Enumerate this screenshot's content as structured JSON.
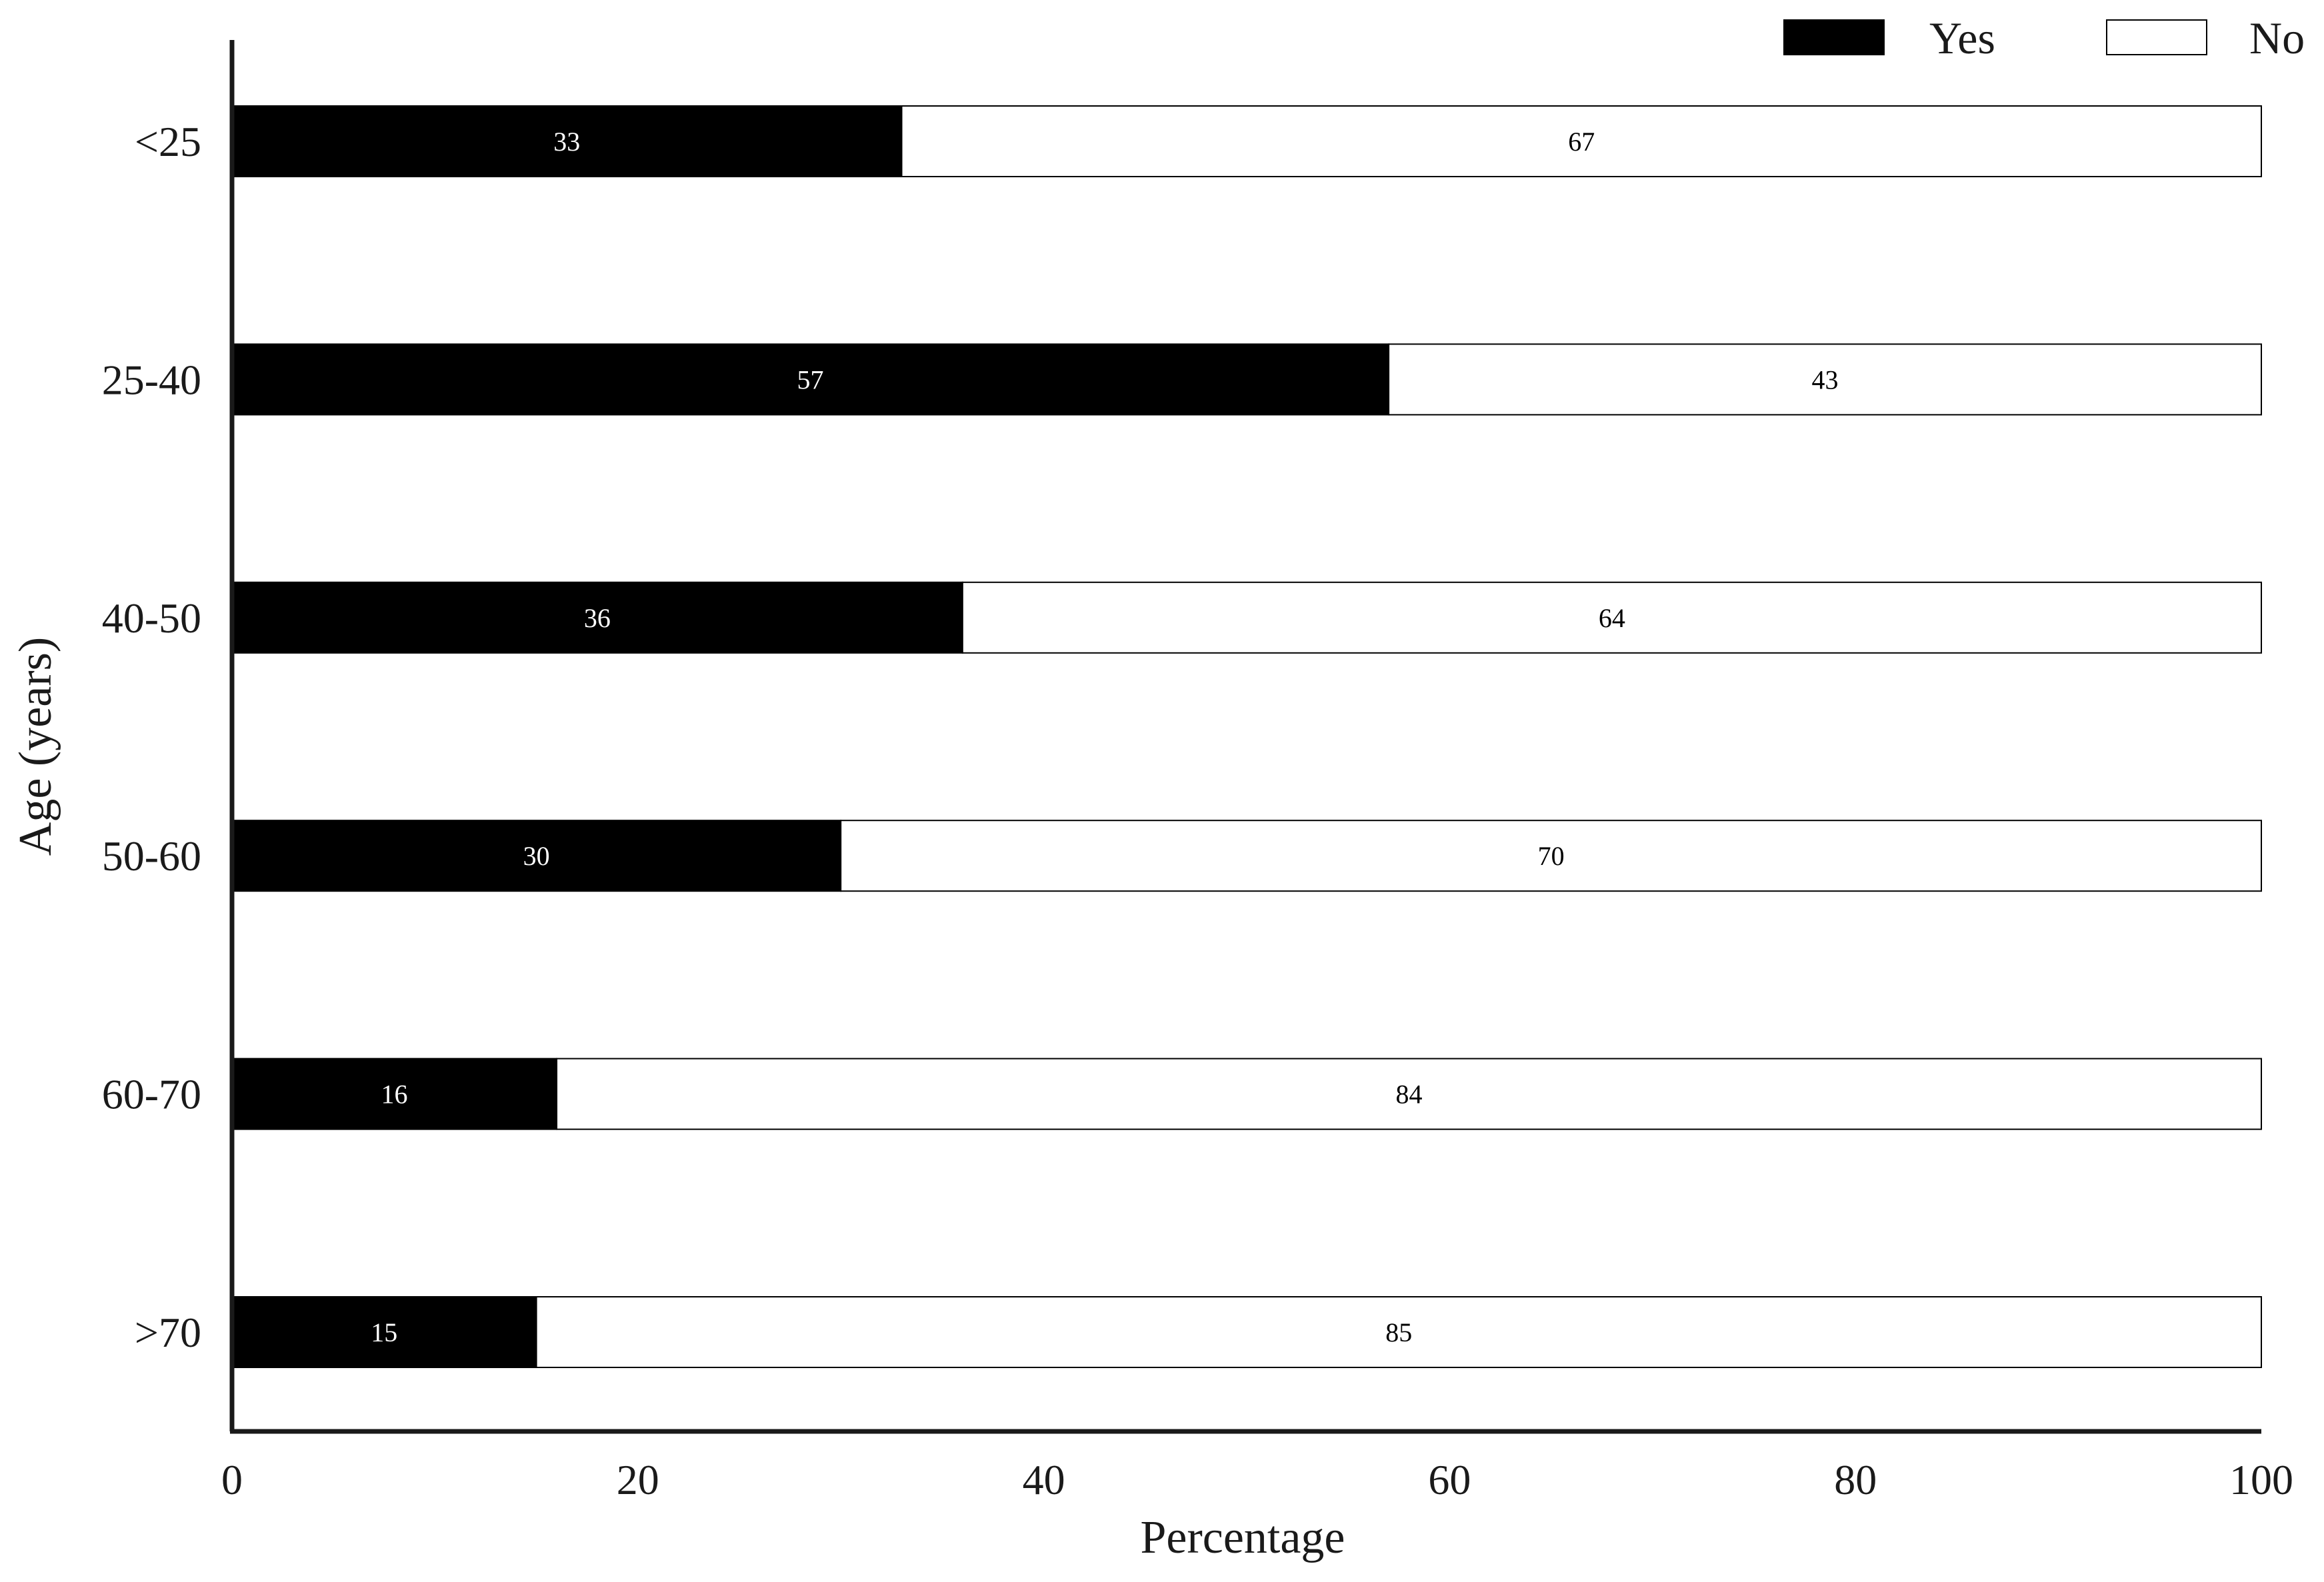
{
  "chart_data": {
    "type": "bar",
    "orientation": "horizontal",
    "stacked": true,
    "categories": [
      "<25",
      "25-40",
      "40-50",
      "50-60",
      "60-70",
      ">70"
    ],
    "series": [
      {
        "name": "Yes",
        "values": [
          33,
          57,
          36,
          30,
          16,
          15
        ],
        "color": "#000000",
        "label_color": "#ffffff"
      },
      {
        "name": "No",
        "values": [
          67,
          43,
          64,
          70,
          84,
          85
        ],
        "color": "#ffffff",
        "label_color": "#000000"
      }
    ],
    "xlabel": "Percentage",
    "ylabel": "Age (years)",
    "xlim": [
      0,
      100
    ],
    "xticks": [
      "0",
      "20",
      "40",
      "60",
      "80",
      "100"
    ],
    "grid": false,
    "legend_position": "top-right",
    "data_labels": true
  }
}
